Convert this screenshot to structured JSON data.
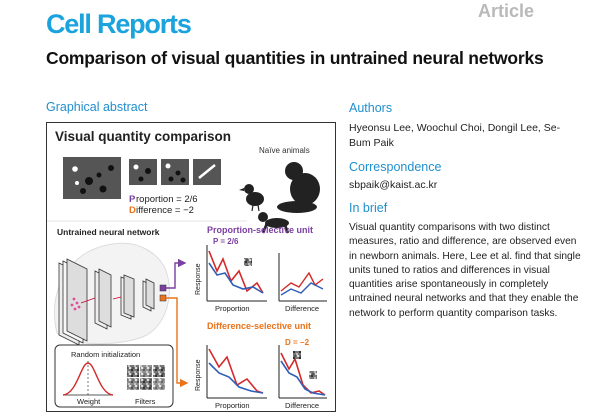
{
  "header": {
    "journal": "Cell Reports",
    "article_type": "Article",
    "title": "Comparison of visual quantities in untrained neural networks"
  },
  "graphical_abstract": {
    "heading": "Graphical abstract",
    "panel_title": "Visual quantity comparison",
    "naive_animals": "Naïve animals",
    "proportion_label": "roportion = 2/6",
    "proportion_letter": "P",
    "difference_label": "ifference = −2",
    "difference_letter": "D",
    "network_label": "Untrained neural network",
    "proportion_unit": "Proportion-selective unit",
    "difference_unit": "Difference-selective unit",
    "p_annot": "P = 2/6",
    "d_annot": "D = −2",
    "response": "Response",
    "x_proportion": "Proportion",
    "x_difference": "Difference",
    "random_init": "Random initialization",
    "weight": "Weight",
    "filters": "Filters"
  },
  "sidebar": {
    "authors_heading": "Authors",
    "authors": "Hyeonsu Lee, Woochul Choi, Dongil Lee, Se-Bum Paik",
    "correspondence_heading": "Correspondence",
    "email": "sbpaik@kaist.ac.kr",
    "brief_heading": "In brief",
    "brief": "Visual quantity comparisons with two distinct measures, ratio and difference, are observed even in newborn animals. Here, Lee et al. find that single units tuned to ratios and differences in visual quantities arise spontaneously in completely untrained neural networks and that they enable the network to perform quantity comparison tasks."
  },
  "colors": {
    "brand": "#1aa3dc",
    "section_heading": "#1f8fcf",
    "proportion": "#7b3fa0",
    "difference": "#e8731a",
    "red_line": "#d42a2a",
    "blue_line": "#2f5fb8"
  }
}
